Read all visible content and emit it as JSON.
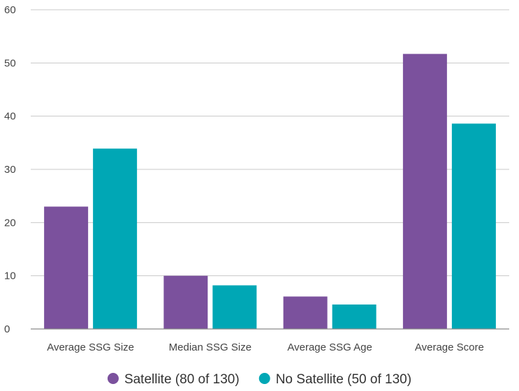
{
  "chart_data": {
    "type": "bar",
    "title": "",
    "xlabel": "",
    "ylabel": "",
    "categories": [
      "Average SSG Size",
      "Median SSG Size",
      "Average SSG Age",
      "Average Score"
    ],
    "series": [
      {
        "name": "Satellite (80 of 130)",
        "color": "#7b519d",
        "values": [
          23.0,
          10.0,
          6.1,
          51.7
        ]
      },
      {
        "name": "No Satellite (50 of 130)",
        "color": "#00a7b5",
        "values": [
          33.9,
          8.2,
          4.6,
          38.6
        ]
      }
    ],
    "ylim": [
      0,
      60
    ],
    "yticks": [
      0,
      10,
      20,
      30,
      40,
      50,
      60
    ],
    "grid": true,
    "legend_position": "bottom-center"
  }
}
